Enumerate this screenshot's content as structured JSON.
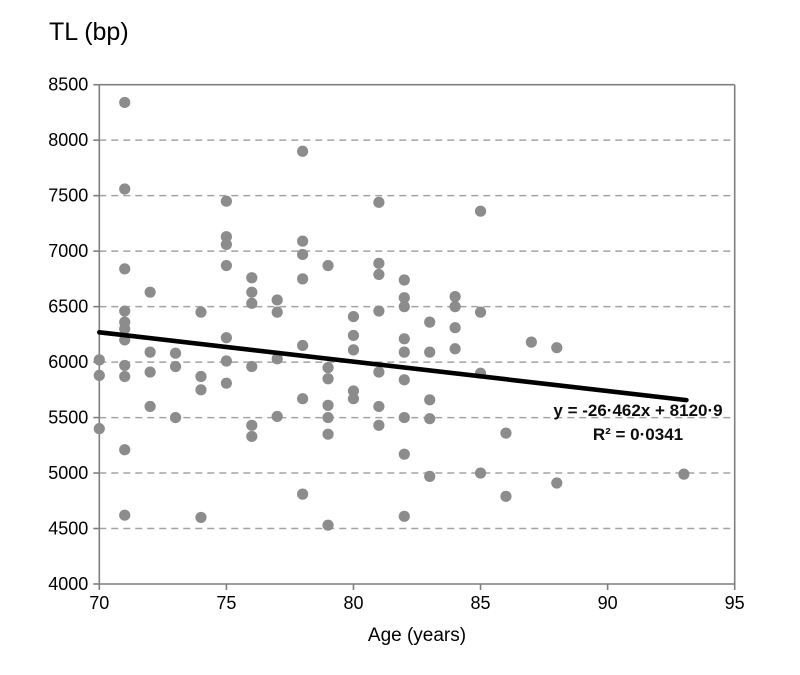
{
  "chart_data": {
    "type": "scatter",
    "title": "TL (bp)",
    "xlabel": "Age (years)",
    "ylabel": "TL (bp)",
    "xlim": [
      70,
      95
    ],
    "ylim": [
      4000,
      8500
    ],
    "x_ticks": [
      70,
      75,
      80,
      85,
      90,
      95
    ],
    "y_ticks": [
      4000,
      4500,
      5000,
      5500,
      6000,
      6500,
      7000,
      7500,
      8000,
      8500
    ],
    "grid": "horizontal-dashed",
    "legend": "none",
    "points": [
      [
        70,
        6020
      ],
      [
        70,
        5880
      ],
      [
        70,
        5400
      ],
      [
        71,
        8340
      ],
      [
        71,
        7560
      ],
      [
        71,
        6840
      ],
      [
        71,
        6460
      ],
      [
        71,
        6360
      ],
      [
        71,
        6300
      ],
      [
        71,
        6200
      ],
      [
        71,
        5970
      ],
      [
        71,
        5870
      ],
      [
        71,
        5210
      ],
      [
        71,
        4620
      ],
      [
        72,
        6630
      ],
      [
        72,
        6090
      ],
      [
        72,
        5910
      ],
      [
        72,
        5600
      ],
      [
        73,
        6080
      ],
      [
        73,
        5960
      ],
      [
        73,
        5500
      ],
      [
        74,
        6450
      ],
      [
        74,
        5870
      ],
      [
        74,
        5750
      ],
      [
        74,
        4600
      ],
      [
        75,
        7450
      ],
      [
        75,
        7130
      ],
      [
        75,
        7060
      ],
      [
        75,
        6870
      ],
      [
        75,
        6220
      ],
      [
        75,
        6010
      ],
      [
        75,
        5810
      ],
      [
        76,
        6760
      ],
      [
        76,
        6630
      ],
      [
        76,
        6530
      ],
      [
        76,
        5960
      ],
      [
        76,
        5430
      ],
      [
        76,
        5330
      ],
      [
        77,
        6560
      ],
      [
        77,
        6450
      ],
      [
        77,
        6030
      ],
      [
        77,
        5510
      ],
      [
        78,
        7900
      ],
      [
        78,
        7090
      ],
      [
        78,
        6970
      ],
      [
        78,
        6750
      ],
      [
        78,
        6150
      ],
      [
        78,
        5670
      ],
      [
        78,
        4810
      ],
      [
        79,
        6870
      ],
      [
        79,
        5950
      ],
      [
        79,
        5850
      ],
      [
        79,
        5610
      ],
      [
        79,
        5500
      ],
      [
        79,
        5350
      ],
      [
        79,
        4530
      ],
      [
        80,
        6410
      ],
      [
        80,
        6240
      ],
      [
        80,
        6110
      ],
      [
        80,
        5740
      ],
      [
        80,
        5670
      ],
      [
        81,
        7440
      ],
      [
        81,
        6890
      ],
      [
        81,
        6790
      ],
      [
        81,
        6460
      ],
      [
        81,
        5910
      ],
      [
        81,
        5600
      ],
      [
        81,
        5430
      ],
      [
        82,
        6740
      ],
      [
        82,
        6580
      ],
      [
        82,
        6500
      ],
      [
        82,
        6210
      ],
      [
        82,
        6090
      ],
      [
        82,
        5840
      ],
      [
        82,
        5500
      ],
      [
        82,
        5170
      ],
      [
        82,
        4610
      ],
      [
        83,
        6360
      ],
      [
        83,
        6090
      ],
      [
        83,
        5660
      ],
      [
        83,
        5490
      ],
      [
        83,
        4970
      ],
      [
        84,
        6590
      ],
      [
        84,
        6500
      ],
      [
        84,
        6310
      ],
      [
        84,
        6120
      ],
      [
        85,
        7360
      ],
      [
        85,
        6450
      ],
      [
        85,
        5900
      ],
      [
        85,
        5000
      ],
      [
        86,
        5360
      ],
      [
        86,
        4790
      ],
      [
        87,
        6180
      ],
      [
        88,
        6130
      ],
      [
        88,
        4910
      ],
      [
        93,
        4990
      ]
    ],
    "trendline": {
      "slope": -26.462,
      "intercept": 8120.9,
      "x_start": 70,
      "x_end": 93.1,
      "equation_label": "y = -26·462x + 8120·9",
      "r2_label": "R² = 0·0341"
    },
    "colors": {
      "point": "#8c8c8c",
      "trendline": "#000000",
      "grid": "#a3a3a3",
      "axis": "#7f7f7f",
      "text": "#000000"
    }
  }
}
